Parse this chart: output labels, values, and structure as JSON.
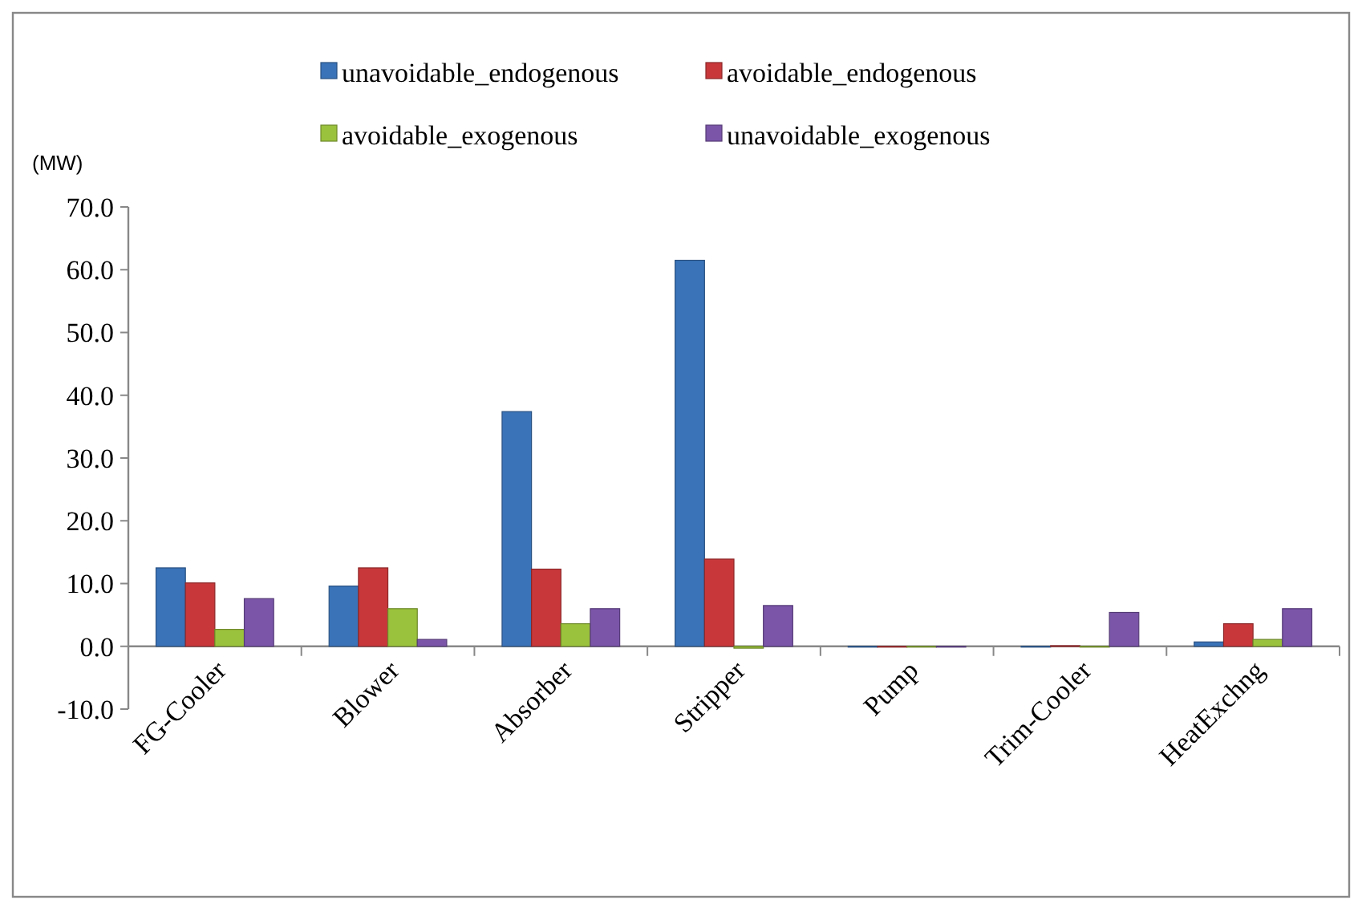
{
  "chart_data": {
    "type": "bar",
    "ylabel": "(MW)",
    "categories": [
      "FG-Cooler",
      "Blower",
      "Absorber",
      "Stripper",
      "Pump",
      "Trim-Cooler",
      "HeatExchng"
    ],
    "series": [
      {
        "name": "unavoidable_endogenous",
        "color": "#3a73b8",
        "values": [
          12.5,
          9.6,
          37.4,
          61.5,
          0,
          0,
          0.7
        ]
      },
      {
        "name": "avoidable_endogenous",
        "color": "#c8383a",
        "values": [
          10.1,
          12.5,
          12.3,
          13.9,
          0,
          0.1,
          3.6
        ]
      },
      {
        "name": "avoidable_exogenous",
        "color": "#9bc23c",
        "values": [
          2.7,
          6.0,
          3.6,
          -0.3,
          0,
          0,
          1.1
        ]
      },
      {
        "name": "unavoidable_exogenous",
        "color": "#7a55a8",
        "values": [
          7.6,
          1.1,
          6.0,
          6.5,
          0,
          5.4,
          6.0
        ]
      }
    ],
    "ylim": [
      -10,
      70
    ],
    "yticks": [
      {
        "value": -10,
        "label": "-10.0"
      },
      {
        "value": 0,
        "label": "0.0"
      },
      {
        "value": 10,
        "label": "10.0"
      },
      {
        "value": 20,
        "label": "20.0"
      },
      {
        "value": 30,
        "label": "30.0"
      },
      {
        "value": 40,
        "label": "40.0"
      },
      {
        "value": 50,
        "label": "50.0"
      },
      {
        "value": 60,
        "label": "60.0"
      },
      {
        "value": 70,
        "label": "70.0"
      }
    ],
    "grid": false,
    "legend": "top"
  }
}
